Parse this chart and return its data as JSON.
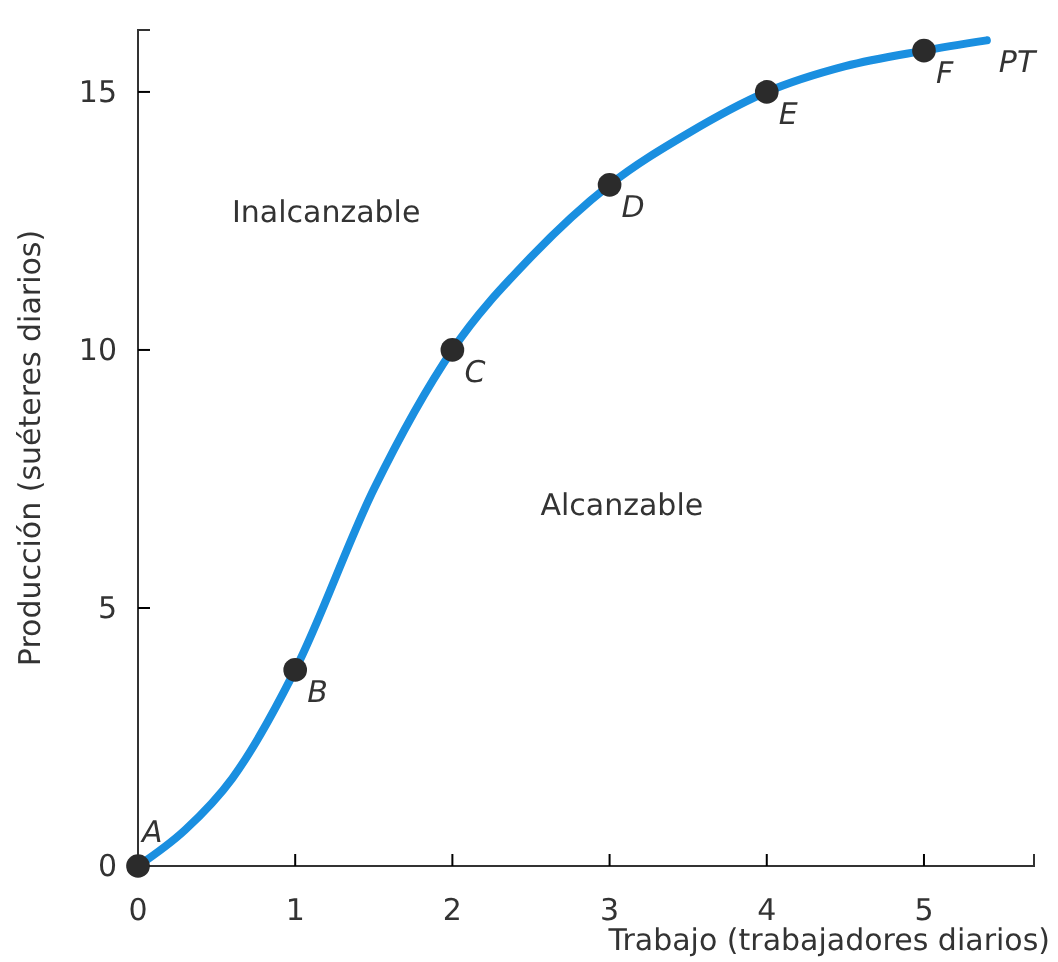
{
  "chart_data": {
    "type": "line",
    "xlabel": "Trabajo (trabajadores diarios)",
    "ylabel": "Producción (suéteres diarios)",
    "xlim": [
      0,
      5.7
    ],
    "ylim": [
      0,
      16.2
    ],
    "xticks": [
      0,
      1,
      2,
      3,
      4,
      5
    ],
    "yticks": [
      0,
      5,
      10,
      15
    ],
    "series": [
      {
        "color": "#1a8fe0",
        "x": [
          0,
          0.3,
          0.6,
          1,
          1.5,
          2,
          2.5,
          3,
          3.5,
          4,
          4.5,
          5,
          5.4
        ],
        "values": [
          0,
          0.7,
          1.7,
          3.8,
          7.3,
          10,
          11.8,
          13.2,
          14.2,
          15,
          15.5,
          15.8,
          16
        ]
      },
      {
        "type": "scatter",
        "marker": "circle",
        "color": "#2b2b2b",
        "x": [
          0,
          1,
          2,
          3,
          4,
          5
        ],
        "values": [
          0,
          3.8,
          10,
          13.2,
          15,
          15.8
        ]
      }
    ],
    "annotations": [
      {
        "text": "A",
        "x": 0,
        "y": 0
      },
      {
        "text": "B",
        "x": 1,
        "y": 3.8
      },
      {
        "text": "C",
        "x": 2,
        "y": 10
      },
      {
        "text": "D",
        "x": 3,
        "y": 13.2
      },
      {
        "text": "E",
        "x": 4,
        "y": 15
      },
      {
        "text": "F",
        "x": 5,
        "y": 15.8
      },
      {
        "text": "PT",
        "x": 5.4,
        "y": 16
      },
      "Inalcanzable",
      "Alcanzable"
    ]
  }
}
